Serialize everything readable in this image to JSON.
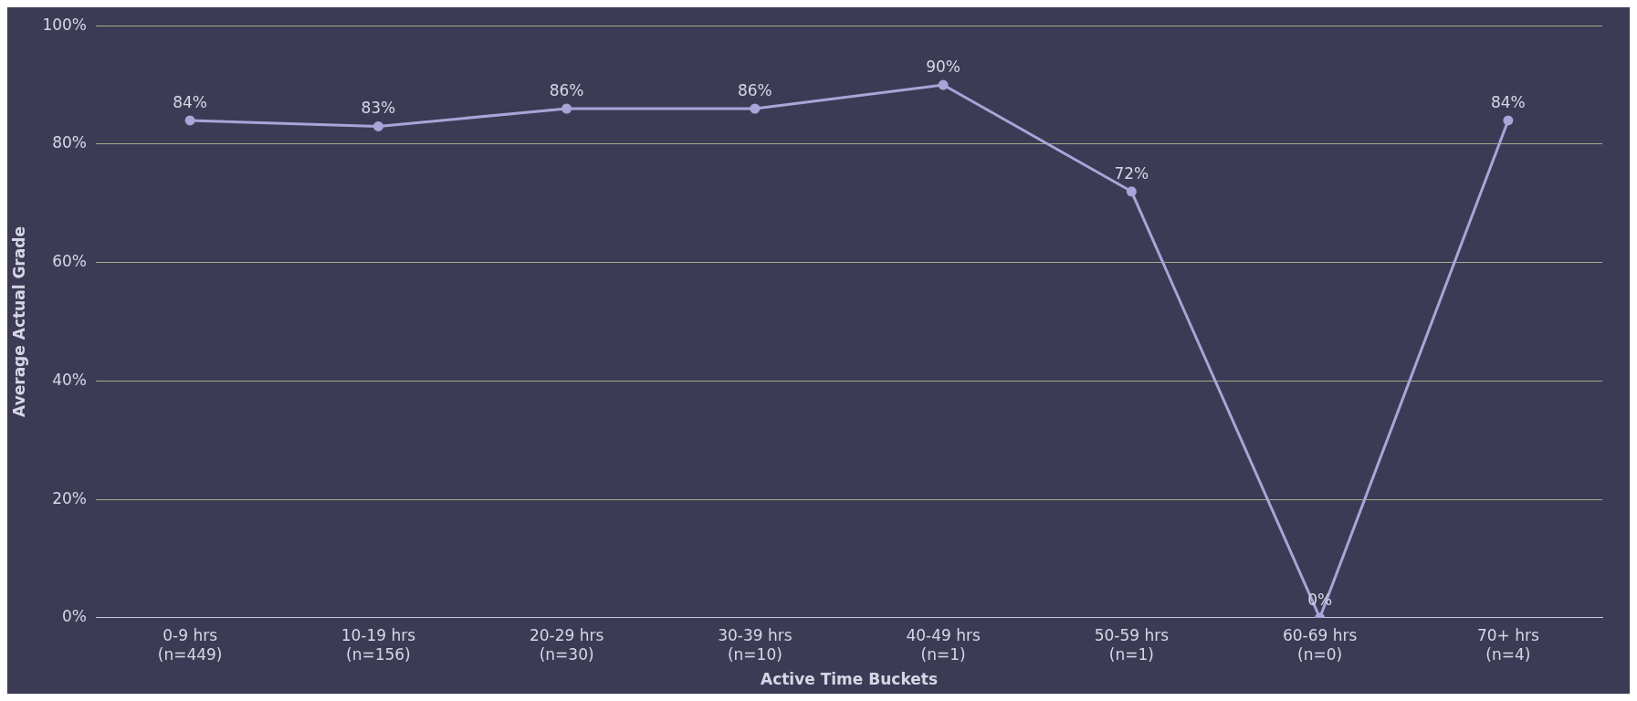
{
  "chart_data": {
    "type": "line",
    "xlabel": "Active Time Buckets",
    "ylabel": "Average Actual Grade",
    "categories": [
      "0-9 hrs\n(n=449)",
      "10-19 hrs\n(n=156)",
      "20-29 hrs\n(n=30)",
      "30-39 hrs\n(n=10)",
      "40-49 hrs\n(n=1)",
      "50-59 hrs\n(n=1)",
      "60-69 hrs\n(n=0)",
      "70+ hrs\n(n=4)"
    ],
    "series": [
      {
        "color": "#a8a5d8",
        "values": [
          84,
          83,
          86,
          86,
          90,
          72,
          0,
          84
        ]
      }
    ],
    "value_labels": [
      "84%",
      "83%",
      "86%",
      "86%",
      "90%",
      "72%",
      "0%",
      "84%"
    ],
    "ylim": [
      0,
      100
    ],
    "yticks": [
      {
        "value": 0,
        "label": "0%"
      },
      {
        "value": 20,
        "label": "20%"
      },
      {
        "value": 40,
        "label": "40%"
      },
      {
        "value": 60,
        "label": "60%"
      },
      {
        "value": 80,
        "label": "80%"
      },
      {
        "value": 100,
        "label": "100%"
      }
    ],
    "grid": "y",
    "marker": "circle",
    "line_style": "solid",
    "legend": false
  }
}
